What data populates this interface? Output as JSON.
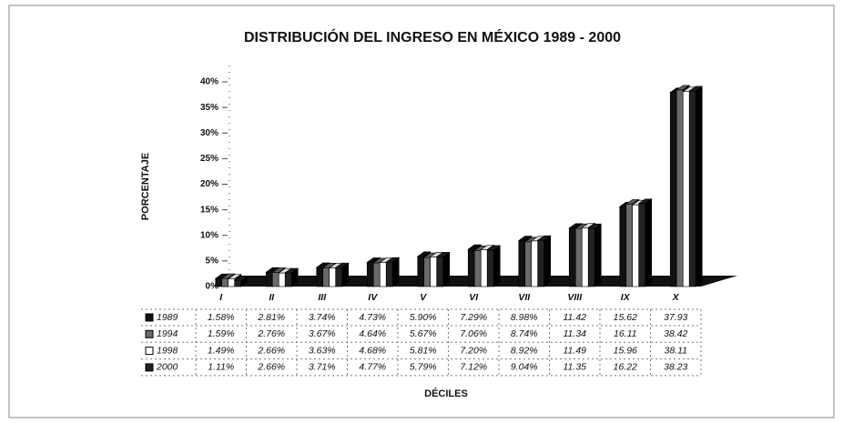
{
  "chart_data": {
    "type": "bar",
    "title": "DISTRIBUCIÓN DEL INGRESO EN MÉXICO 1989 - 2000",
    "y_label": "PORCENTAJE",
    "x_label": "DÉCILES",
    "categories": [
      "I",
      "II",
      "III",
      "IV",
      "V",
      "VI",
      "VII",
      "VIII",
      "IX",
      "X"
    ],
    "series": [
      {
        "name": "1989",
        "color": "#111111",
        "values": [
          1.58,
          2.81,
          3.74,
          4.73,
          5.9,
          7.29,
          8.98,
          11.42,
          15.62,
          37.93
        ],
        "value_labels": [
          "1.58%",
          "2.81%",
          "3.74%",
          "4.73%",
          "5.90%",
          "7.29%",
          "8.98%",
          "11.42",
          "15.62",
          "37.93"
        ]
      },
      {
        "name": "1994",
        "color": "#6a6a6a",
        "values": [
          1.59,
          2.76,
          3.67,
          4.64,
          5.67,
          7.06,
          8.74,
          11.34,
          16.11,
          38.42
        ],
        "value_labels": [
          "1.59%",
          "2.76%",
          "3.67%",
          "4.64%",
          "5.67%",
          "7.06%",
          "8.74%",
          "11.34",
          "16.11",
          "38.42"
        ]
      },
      {
        "name": "1998",
        "color": "#ffffff",
        "values": [
          1.49,
          2.66,
          3.63,
          4.68,
          5.81,
          7.2,
          8.92,
          11.49,
          15.96,
          38.11
        ],
        "value_labels": [
          "1.49%",
          "2.66%",
          "3.63%",
          "4.68%",
          "5.81%",
          "7.20%",
          "8.92%",
          "11.49",
          "15.96",
          "38.11"
        ]
      },
      {
        "name": "2000",
        "color": "#222222",
        "values": [
          1.11,
          2.66,
          3.71,
          4.77,
          5.79,
          7.12,
          9.04,
          11.35,
          16.22,
          38.23
        ],
        "value_labels": [
          "1.11%",
          "2.66%",
          "3.71%",
          "4.77%",
          "5.79%",
          "7.12%",
          "9.04%",
          "11.35",
          "16.22",
          "38.23"
        ]
      }
    ],
    "ylim": [
      0,
      40
    ],
    "yticks": [
      {
        "value": 0,
        "label": "0%"
      },
      {
        "value": 5,
        "label": "5%"
      },
      {
        "value": 10,
        "label": "10%"
      },
      {
        "value": 15,
        "label": "15%"
      },
      {
        "value": 20,
        "label": "20%"
      },
      {
        "value": 25,
        "label": "25%"
      },
      {
        "value": 30,
        "label": "30%"
      },
      {
        "value": 35,
        "label": "35%"
      },
      {
        "value": 40,
        "label": "40%"
      }
    ]
  }
}
